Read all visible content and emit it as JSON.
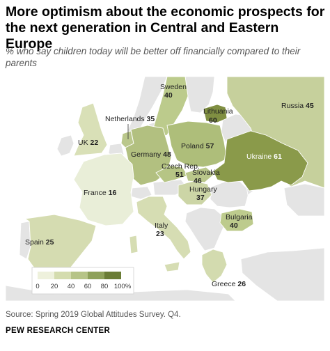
{
  "header": {
    "title": "More optimism about the economic prospects for the next generation in Central and Eastern Europe",
    "subtitle": "% who say children today will be better off financially compared to their parents"
  },
  "map": {
    "countries": [
      {
        "key": "sweden",
        "name": "Sweden",
        "value": "40"
      },
      {
        "key": "russia",
        "name": "Russia",
        "value": "45"
      },
      {
        "key": "lithuania",
        "name": "Lithuania",
        "value": "60"
      },
      {
        "key": "netherlands",
        "name": "Netherlands",
        "value": "35"
      },
      {
        "key": "uk",
        "name": "UK",
        "value": "22"
      },
      {
        "key": "germany",
        "name": "Germany",
        "value": "48"
      },
      {
        "key": "poland",
        "name": "Poland",
        "value": "57"
      },
      {
        "key": "ukraine",
        "name": "Ukraine",
        "value": "61"
      },
      {
        "key": "czech",
        "name": "Czech Rep.",
        "value": "51"
      },
      {
        "key": "slovakia",
        "name": "Slovakia",
        "value": "46"
      },
      {
        "key": "hungary",
        "name": "Hungary",
        "value": "37"
      },
      {
        "key": "france",
        "name": "France",
        "value": "16"
      },
      {
        "key": "italy",
        "name": "Italy",
        "value": "23"
      },
      {
        "key": "bulgaria",
        "name": "Bulgaria",
        "value": "40"
      },
      {
        "key": "spain",
        "name": "Spain",
        "value": "25"
      },
      {
        "key": "greece",
        "name": "Greece",
        "value": "26"
      }
    ],
    "legend": {
      "labels": [
        "0",
        "20",
        "40",
        "60",
        "80",
        "100%"
      ],
      "colors": [
        "#eef1dc",
        "#d4dcae",
        "#b6c487",
        "#8ea15a",
        "#6a7c36"
      ]
    },
    "colors": {
      "sea": "#ffffff",
      "no_data": "#e4e4e4",
      "border": "#ffffff"
    }
  },
  "footer": {
    "source": "Source: Spring 2019 Global Attitudes Survey. Q4.",
    "brand": "PEW RESEARCH CENTER"
  }
}
